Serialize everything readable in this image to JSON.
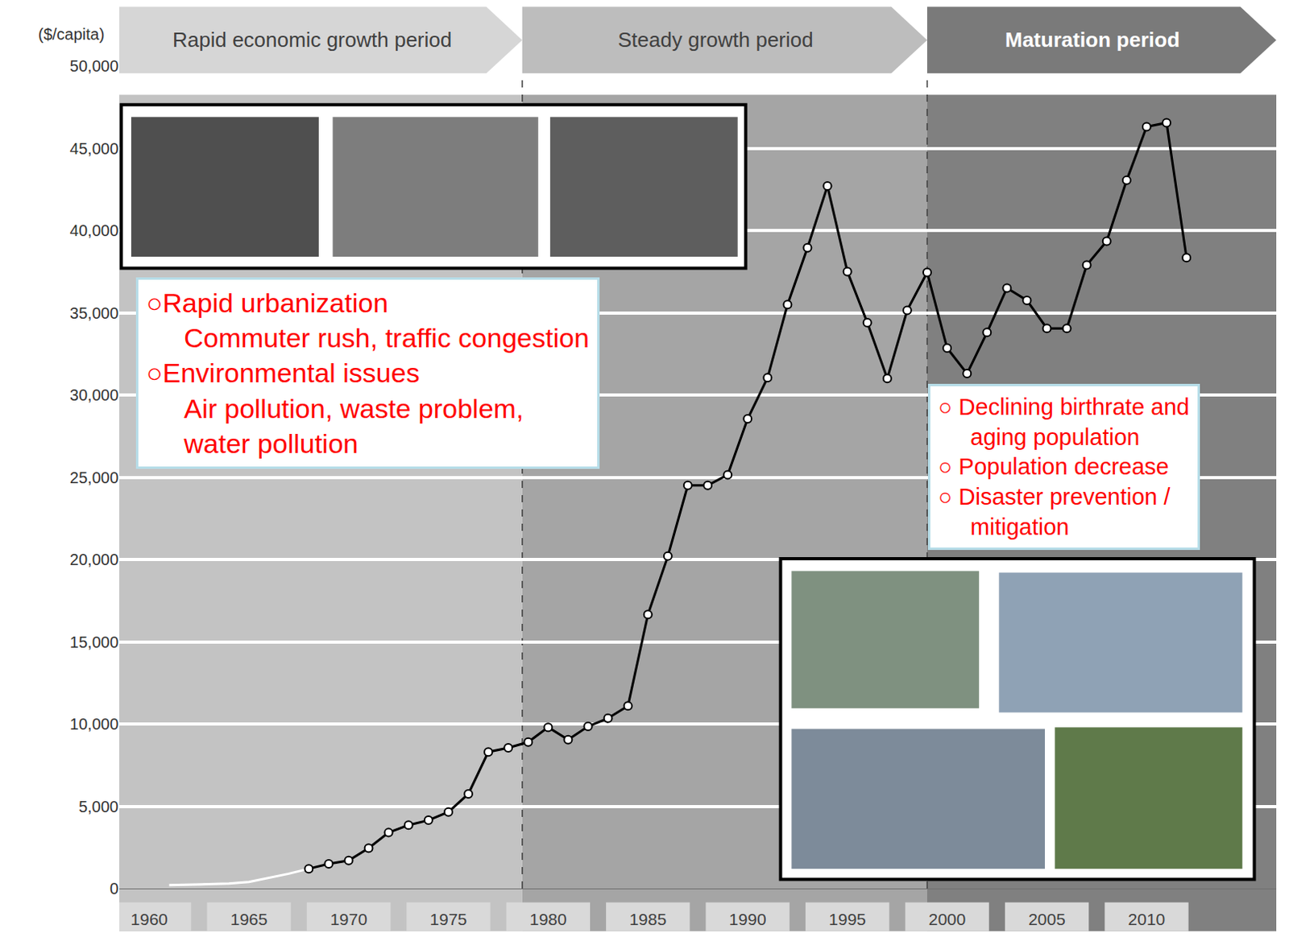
{
  "chart_data": {
    "type": "line",
    "ylabel": "($/capita)",
    "x": [
      1961,
      1962,
      1963,
      1964,
      1965,
      1966,
      1967,
      1968,
      1969,
      1970,
      1971,
      1972,
      1973,
      1974,
      1975,
      1976,
      1977,
      1978,
      1979,
      1980,
      1981,
      1982,
      1983,
      1984,
      1985,
      1986,
      1987,
      1988,
      1989,
      1990,
      1991,
      1992,
      1993,
      1994,
      1995,
      1996,
      1997,
      1998,
      1999,
      2000,
      2001,
      2002,
      2003,
      2004,
      2005,
      2006,
      2007,
      2008,
      2009,
      2010,
      2011,
      2012
    ],
    "series": [
      {
        "color": "#ffffff",
        "marker": "none",
        "values": [
          200,
          230,
          260,
          300,
          400,
          650,
          900,
          1200,
          null,
          null,
          null,
          null,
          null,
          null,
          null,
          null,
          null,
          null,
          null,
          null,
          null,
          null,
          null,
          null,
          null,
          null,
          null,
          null,
          null,
          null,
          null,
          null,
          null,
          null,
          null,
          null,
          null,
          null,
          null,
          null,
          null,
          null,
          null,
          null,
          null,
          null,
          null,
          null,
          null,
          null,
          null,
          null
        ]
      },
      {
        "color": "#000000",
        "marker": "circle",
        "values": [
          null,
          null,
          null,
          null,
          null,
          null,
          null,
          1200,
          1500,
          1700,
          2450,
          3400,
          3850,
          4150,
          4650,
          5750,
          8300,
          8550,
          8900,
          9800,
          9050,
          9850,
          10350,
          11100,
          16650,
          20200,
          24500,
          24500,
          25150,
          28550,
          31050,
          35500,
          38950,
          42700,
          37500,
          34400,
          31000,
          35150,
          37450,
          32850,
          31300,
          33800,
          36500,
          35750,
          34050,
          34050,
          37900,
          39350,
          43050,
          46300,
          46550,
          38350
        ]
      }
    ],
    "xlim": [
      1958.5,
      2016.5
    ],
    "xticks": [
      1960,
      1965,
      1970,
      1975,
      1980,
      1985,
      1990,
      1995,
      2000,
      2005,
      2010
    ],
    "ylim": [
      0,
      50000
    ],
    "yticks": [
      0,
      {
        "value": 5000,
        "label": "5,000"
      },
      {
        "value": 10000,
        "label": "10,000"
      },
      {
        "value": 15000,
        "label": "15,000"
      },
      {
        "value": 20000,
        "label": "20,000"
      },
      {
        "value": 25000,
        "label": "25,000"
      },
      {
        "value": 30000,
        "label": "30,000"
      },
      {
        "value": 35000,
        "label": "35,000"
      },
      {
        "value": 40000,
        "label": "40,000"
      },
      {
        "value": 45000,
        "label": "45,000"
      },
      {
        "value": 50000,
        "label": "50,000"
      }
    ],
    "grid": true,
    "bands": [
      {
        "label": "Rapid economic growth period",
        "start": 1958.5,
        "end": 1978.7,
        "color": "#c3c3c3"
      },
      {
        "label": "Steady growth period",
        "start": 1978.7,
        "end": 1999.0,
        "color": "#a5a5a5"
      },
      {
        "label": "Maturation period",
        "start": 1999.0,
        "end": 2016.5,
        "color": "#808080"
      }
    ],
    "annotations": [
      {
        "lines": [
          "○Rapid urbanization",
          "Commuter rush, traffic congestion",
          "○Environmental issues",
          "Air pollution, waste problem,",
          "water pollution"
        ]
      },
      {
        "lines": [
          "○ Declining birthrate and",
          "aging population",
          "○ Population decrease",
          "○ Disaster prevention /",
          "mitigation"
        ]
      }
    ]
  }
}
